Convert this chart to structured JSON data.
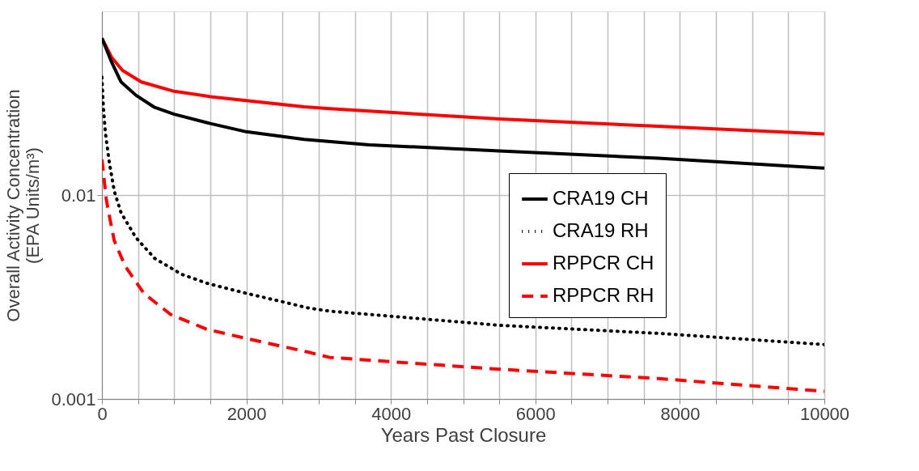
{
  "chart_data": {
    "type": "line",
    "xlabel": "Years Past Closure",
    "ylabel": "Overall Activity Concentration\n(EPA Units/m³)",
    "log": "y",
    "grid": true,
    "legend": "right",
    "xlim": [
      0,
      10000
    ],
    "ylim": [
      0.001,
      0.08
    ],
    "xticks": [
      0,
      {
        "value": 500,
        "label": null
      },
      {
        "value": 1000,
        "label": null
      },
      {
        "value": 1500,
        "label": null
      },
      2000,
      {
        "value": 2500,
        "label": null
      },
      {
        "value": 3000,
        "label": null
      },
      {
        "value": 3500,
        "label": null
      },
      4000,
      {
        "value": 4500,
        "label": null
      },
      {
        "value": 5000,
        "label": null
      },
      {
        "value": 5500,
        "label": null
      },
      6000,
      {
        "value": 6500,
        "label": null
      },
      {
        "value": 7000,
        "label": null
      },
      {
        "value": 7500,
        "label": null
      },
      8000,
      {
        "value": 8500,
        "label": null
      },
      {
        "value": 9000,
        "label": null
      },
      {
        "value": 9500,
        "label": null
      },
      10000
    ],
    "yticks": [
      0.001,
      0.01
    ],
    "series": [
      {
        "name": "CRA19 CH",
        "color": "#000000",
        "line_style": "solid",
        "x": [
          0,
          135,
          265,
          470,
          730,
          1000,
          1500,
          2000,
          2800,
          3700,
          5500,
          7700,
          10000
        ],
        "values": [
          0.059,
          0.045,
          0.036,
          0.031,
          0.027,
          0.025,
          0.0225,
          0.0205,
          0.0188,
          0.0177,
          0.0165,
          0.0152,
          0.0136
        ]
      },
      {
        "name": "CRA19 RH",
        "color": "#000000",
        "line_style": "dotted",
        "x": [
          0,
          20,
          50,
          100,
          170,
          265,
          470,
          730,
          1100,
          1450,
          2000,
          2500,
          2850,
          3150,
          5500,
          7700,
          10000
        ],
        "values": [
          0.038,
          0.027,
          0.02,
          0.0147,
          0.0105,
          0.0082,
          0.0062,
          0.0049,
          0.0041,
          0.0037,
          0.0033,
          0.003,
          0.0028,
          0.0027,
          0.0023,
          0.0021,
          0.00185
        ]
      },
      {
        "name": "RPPCR CH",
        "color": "#ff0000",
        "line_style": "solid",
        "x": [
          0,
          135,
          285,
          545,
          1000,
          1500,
          2800,
          3150,
          5500,
          7700,
          10000
        ],
        "values": [
          0.059,
          0.0475,
          0.041,
          0.036,
          0.0324,
          0.0305,
          0.0272,
          0.0266,
          0.0237,
          0.0218,
          0.02
        ]
      },
      {
        "name": "RPPCR RH",
        "color": "#ff0000",
        "line_style": "dashed",
        "x": [
          0,
          60,
          80,
          170,
          320,
          580,
          950,
          1450,
          1950,
          2850,
          3150,
          5500,
          7700,
          10000
        ],
        "values": [
          0.015,
          0.0096,
          0.0087,
          0.006,
          0.0045,
          0.0033,
          0.0026,
          0.0022,
          0.002,
          0.0017,
          0.0016,
          0.0014,
          0.00126,
          0.00109
        ]
      }
    ]
  }
}
